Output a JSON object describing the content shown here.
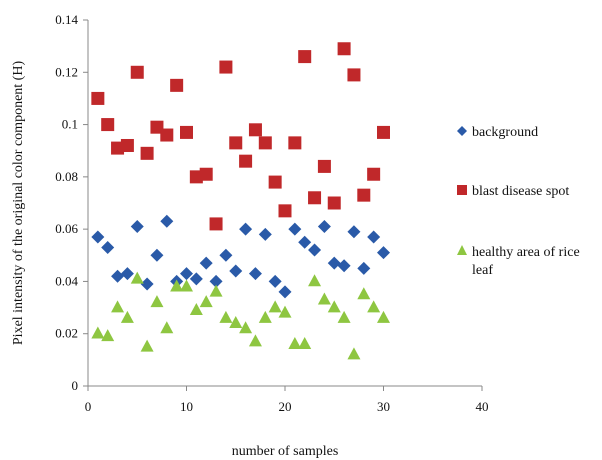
{
  "chart_data": {
    "type": "scatter",
    "xlabel": "number of samples",
    "ylabel": "Pixel intensity of the original color component (H)",
    "xlim": [
      0,
      40
    ],
    "ylim": [
      0,
      0.14
    ],
    "x_ticks": [
      "0",
      "10",
      "20",
      "30",
      "40"
    ],
    "y_ticks": [
      "0",
      "0.02",
      "0.04",
      "0.06",
      "0.08",
      "0.1",
      "0.12",
      "0.14"
    ],
    "grid": false,
    "legend_position": "right",
    "series": [
      {
        "name": "background",
        "marker": "diamond",
        "color": "#2a5aa8",
        "x": [
          1,
          2,
          3,
          4,
          5,
          6,
          7,
          8,
          9,
          10,
          11,
          12,
          13,
          14,
          15,
          16,
          17,
          18,
          19,
          20,
          21,
          22,
          23,
          24,
          25,
          26,
          27,
          28,
          29,
          30
        ],
        "y": [
          0.057,
          0.053,
          0.042,
          0.043,
          0.061,
          0.039,
          0.05,
          0.063,
          0.04,
          0.043,
          0.041,
          0.047,
          0.04,
          0.05,
          0.044,
          0.06,
          0.043,
          0.058,
          0.04,
          0.036,
          0.06,
          0.055,
          0.052,
          0.061,
          0.047,
          0.046,
          0.059,
          0.045,
          0.057,
          0.051
        ]
      },
      {
        "name": "blast disease spot",
        "marker": "square",
        "color": "#c0282a",
        "x": [
          1,
          2,
          3,
          4,
          5,
          6,
          7,
          8,
          9,
          10,
          11,
          12,
          13,
          14,
          15,
          16,
          17,
          18,
          19,
          20,
          21,
          22,
          23,
          24,
          25,
          26,
          27,
          28,
          29,
          30
        ],
        "y": [
          0.11,
          0.1,
          0.091,
          0.092,
          0.12,
          0.089,
          0.099,
          0.096,
          0.115,
          0.097,
          0.08,
          0.081,
          0.062,
          0.122,
          0.093,
          0.086,
          0.098,
          0.093,
          0.078,
          0.067,
          0.093,
          0.126,
          0.072,
          0.084,
          0.07,
          0.129,
          0.119,
          0.073,
          0.081,
          0.097
        ]
      },
      {
        "name": "healthy area of rice leaf",
        "marker": "triangle",
        "color": "#8ec641",
        "x": [
          1,
          2,
          3,
          4,
          5,
          6,
          7,
          8,
          9,
          10,
          11,
          12,
          13,
          14,
          15,
          16,
          17,
          18,
          19,
          20,
          21,
          22,
          23,
          24,
          25,
          26,
          27,
          28,
          29,
          30
        ],
        "y": [
          0.02,
          0.019,
          0.03,
          0.026,
          0.041,
          0.015,
          0.032,
          0.022,
          0.038,
          0.038,
          0.029,
          0.032,
          0.036,
          0.026,
          0.024,
          0.022,
          0.017,
          0.026,
          0.03,
          0.028,
          0.016,
          0.016,
          0.04,
          0.033,
          0.03,
          0.026,
          0.012,
          0.035,
          0.03,
          0.026
        ]
      }
    ]
  }
}
